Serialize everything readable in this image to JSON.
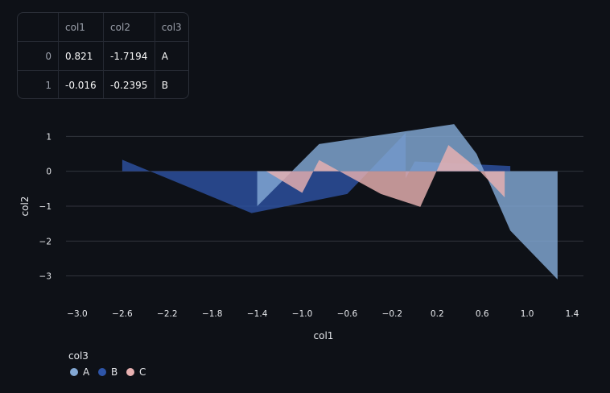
{
  "table": {
    "columns": [
      "",
      "col1",
      "col2",
      "col3"
    ],
    "rows": [
      {
        "index": "0",
        "col1": "0.821",
        "col2": "-1.7194",
        "col3": "A"
      },
      {
        "index": "1",
        "col1": "-0.016",
        "col2": "-0.2395",
        "col3": "B"
      }
    ]
  },
  "chart_data": {
    "type": "area",
    "xlabel": "col1",
    "ylabel": "col2",
    "xlim": [
      -3.1,
      1.5
    ],
    "ylim": [
      -3.4,
      1.4
    ],
    "x_ticks": [
      "−3.0",
      "−2.6",
      "−2.2",
      "−1.8",
      "−1.4",
      "−1.0",
      "−0.6",
      "−0.2",
      "0.2",
      "0.6",
      "1.0",
      "1.4"
    ],
    "y_ticks": [
      "1",
      "0",
      "−1",
      "−2",
      "−3"
    ],
    "grid": true,
    "legend_title": "col3",
    "legend_position": "bottom-left",
    "series": [
      {
        "name": "A",
        "color": "#83a8d4",
        "x": [
          -1.4,
          -0.85,
          0.35,
          0.55,
          0.85,
          1.27
        ],
        "y": [
          -1.0,
          0.78,
          1.35,
          0.5,
          -1.7,
          -3.1
        ]
      },
      {
        "name": "B",
        "color": "#2e55a8",
        "x": [
          -2.6,
          -1.45,
          -0.6,
          -0.08,
          -0.08,
          0.0,
          0.85
        ],
        "y": [
          0.33,
          -1.2,
          -0.65,
          1.1,
          -0.2,
          0.28,
          0.15
        ]
      },
      {
        "name": "C",
        "color": "#e8b1b1",
        "x": [
          -1.32,
          -1.0,
          -0.85,
          -0.3,
          0.05,
          0.3,
          0.55,
          0.8
        ],
        "y": [
          0.0,
          -0.62,
          0.32,
          -0.65,
          -1.02,
          0.75,
          0.1,
          -0.75
        ]
      }
    ]
  }
}
